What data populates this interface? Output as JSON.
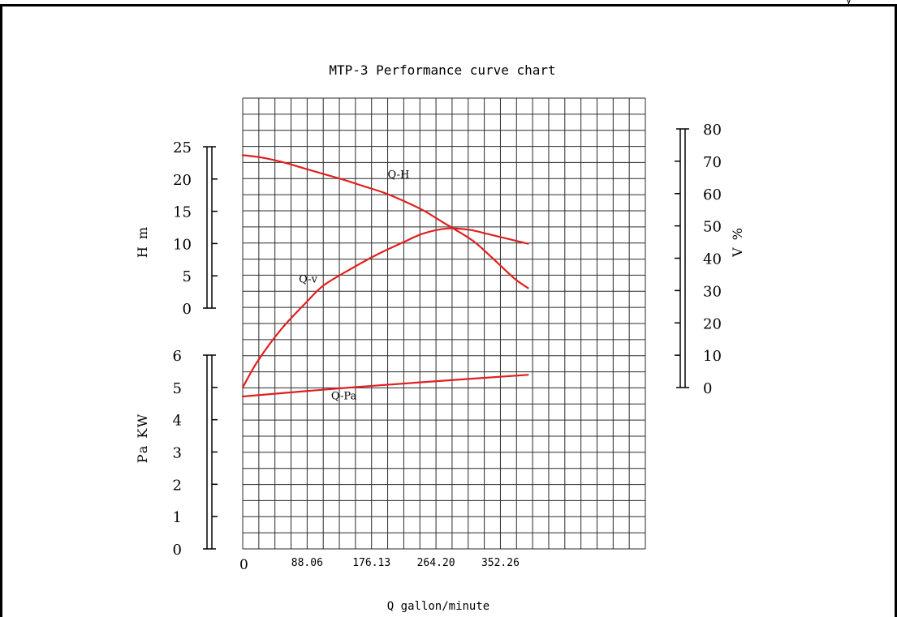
{
  "chart_data": {
    "type": "line",
    "title": "MTP-3 Performance curve chart",
    "xlabel": "Q gallon/minute",
    "x_ticks": [
      "0",
      "88.06",
      "176.13",
      "264.20",
      "352.26"
    ],
    "x_range": [
      0,
      440.32
    ],
    "axes": [
      {
        "id": "head",
        "label": "H m",
        "ticks": [
          "0",
          "5",
          "10",
          "15",
          "20",
          "25"
        ],
        "range": [
          0,
          25
        ]
      },
      {
        "id": "power",
        "label": "Pa KW",
        "ticks": [
          "0",
          "1",
          "2",
          "3",
          "4",
          "5",
          "6"
        ],
        "range": [
          0,
          6
        ]
      },
      {
        "id": "efficiency",
        "label": "V %",
        "ticks": [
          "0",
          "10",
          "20",
          "30",
          "40",
          "50",
          "60",
          "70",
          "80"
        ],
        "range": [
          0,
          80
        ]
      }
    ],
    "series": [
      {
        "name": "Q-H",
        "axis": "head",
        "color": "#e02020",
        "x": [
          0,
          22,
          44,
          66,
          88,
          110,
          132,
          154,
          176,
          198,
          220,
          232,
          253,
          275,
          297,
          312
        ],
        "y": [
          23.7,
          23.3,
          22.6,
          21.7,
          20.8,
          19.9,
          18.9,
          17.9,
          16.6,
          15.1,
          13.2,
          12.2,
          10.3,
          7.5,
          4.6,
          3.1
        ]
      },
      {
        "name": "Q-v",
        "axis": "efficiency",
        "color": "#e02020",
        "x": [
          0,
          16,
          42,
          70,
          88,
          114,
          146,
          176,
          198,
          224,
          248,
          268,
          290,
          312
        ],
        "y": [
          0,
          8,
          18,
          26.5,
          31.5,
          36,
          41,
          45,
          47.7,
          49.2,
          48.8,
          47.5,
          46,
          44.5
        ]
      },
      {
        "name": "Q-Pa",
        "axis": "power",
        "color": "#e02020",
        "x": [
          0,
          110,
          220,
          312
        ],
        "y": [
          4.72,
          4.98,
          5.21,
          5.39
        ]
      }
    ],
    "grid": true,
    "legend": "none"
  }
}
